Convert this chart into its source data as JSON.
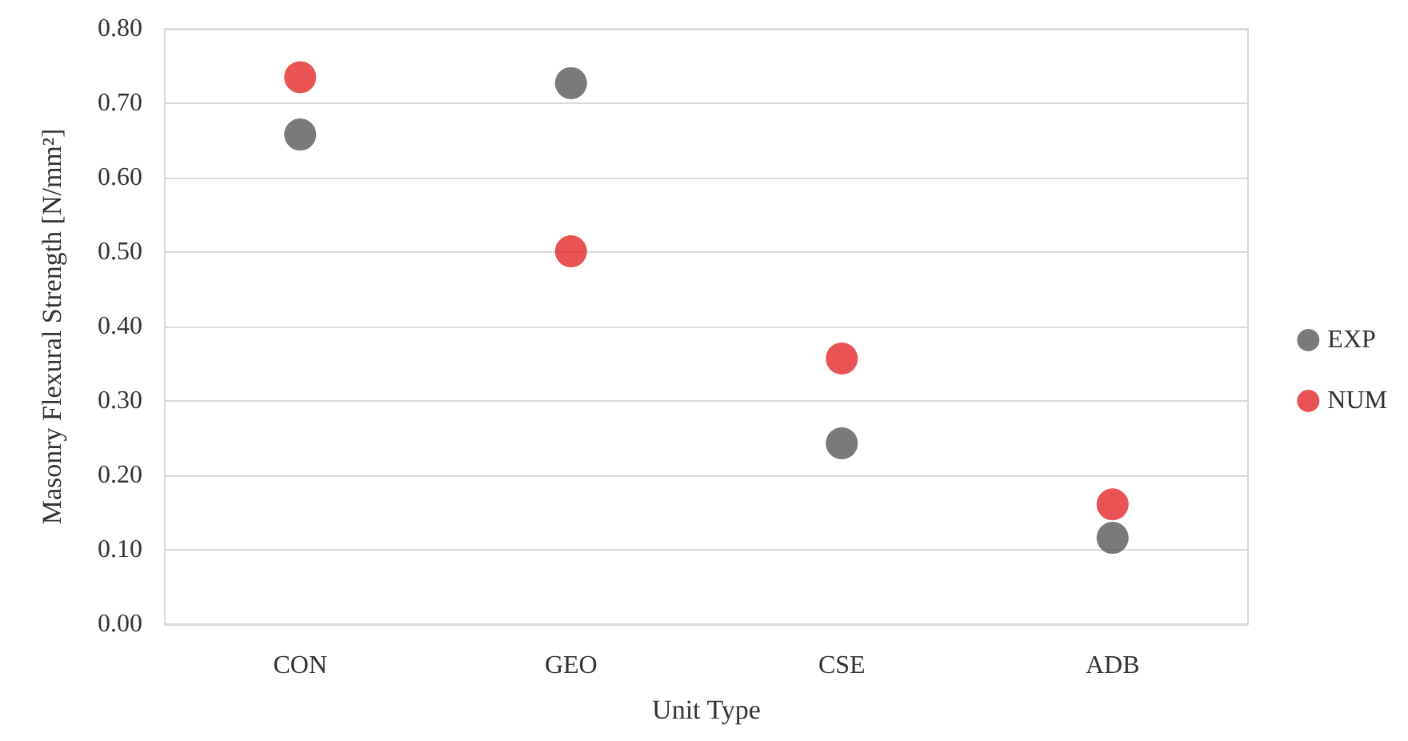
{
  "chart_data": {
    "type": "scatter",
    "xlabel": "Unit Type",
    "ylabel": "Masonry Flexural Strength [N/mm²]",
    "categories": [
      "CON",
      "GEO",
      "CSE",
      "ADB"
    ],
    "series": [
      {
        "name": "EXP",
        "color": "#595959",
        "values": [
          0.658,
          0.727,
          0.243,
          0.116
        ]
      },
      {
        "name": "NUM",
        "color": "#e32828",
        "values": [
          0.735,
          0.501,
          0.357,
          0.161
        ]
      }
    ],
    "ylim": [
      0,
      0.8
    ],
    "yticks": [
      {
        "value": 0,
        "label": "0.00"
      },
      {
        "value": 0.1,
        "label": "0.10"
      },
      {
        "value": 0.2,
        "label": "0.20"
      },
      {
        "value": 0.3,
        "label": "0.30"
      },
      {
        "value": 0.4,
        "label": "0.40"
      },
      {
        "value": 0.5,
        "label": "0.50"
      },
      {
        "value": 0.6,
        "label": "0.60"
      },
      {
        "value": 0.7,
        "label": "0.70"
      },
      {
        "value": 0.8,
        "label": "0.80"
      }
    ],
    "grid": "y",
    "legend": "right",
    "marker": "circle"
  }
}
